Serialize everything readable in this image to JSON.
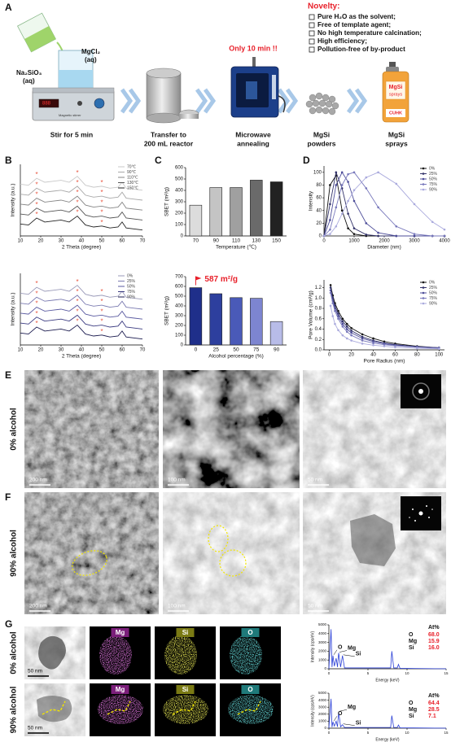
{
  "panel_labels": [
    "A",
    "B",
    "C",
    "D",
    "E",
    "F",
    "G"
  ],
  "scheme": {
    "reagent_1": [
      "Na₂SiO₃",
      "(aq)"
    ],
    "reagent_2": [
      "MgCl₂",
      "(aq)"
    ],
    "stirrer_label": "Magnetic stirrer",
    "steps": [
      [
        "Stir for 5 min"
      ],
      [
        "Transfer to",
        "200 mL reactor"
      ],
      [
        "Microwave",
        "annealing"
      ],
      [
        "MgSi",
        "powders"
      ],
      [
        "MgSi",
        "sprays"
      ]
    ],
    "highlight": "Only 10 min !!",
    "can_labels": [
      "MgSi",
      "sprays",
      "CUHK"
    ],
    "novelty_title": "Novelty:",
    "novelty_items": [
      "Pure H₂O as the solvent;",
      "Free of template agent;",
      "No high temperature calcination;",
      "High efficiency;",
      "Pollution-free of by-product"
    ]
  },
  "chart_data": [
    {
      "type": "line",
      "x_label": "2 Theta (degree)",
      "y_label": "Intensity (a.u.)",
      "x": [
        10,
        14,
        18,
        22,
        26,
        30,
        34,
        38,
        42,
        46,
        50,
        54,
        58,
        60,
        62,
        66,
        70
      ],
      "xlim": [
        10,
        70
      ],
      "xticks": [
        10,
        20,
        30,
        40,
        50,
        60,
        70
      ],
      "ylim": [
        0,
        3.6
      ],
      "legend": "upper right",
      "peak_marks": {
        "label": "*",
        "color": "#e8503a",
        "x": [
          18,
          38,
          50
        ]
      },
      "series": [
        {
          "name": "70℃",
          "color": "#c8c8c8",
          "values": [
            2.6,
            2.55,
            2.9,
            2.7,
            2.75,
            2.8,
            2.7,
            3.0,
            2.55,
            2.45,
            2.5,
            2.4,
            2.45,
            2.7,
            2.4,
            2.35,
            2.3
          ]
        },
        {
          "name": "90℃",
          "color": "#a8a8a8",
          "values": [
            2.1,
            2.05,
            2.4,
            2.2,
            2.25,
            2.3,
            2.2,
            2.5,
            2.05,
            1.95,
            2.0,
            1.9,
            1.95,
            2.2,
            1.9,
            1.85,
            1.8
          ]
        },
        {
          "name": "110℃",
          "color": "#858585",
          "values": [
            1.6,
            1.55,
            1.9,
            1.7,
            1.75,
            1.8,
            1.7,
            2.0,
            1.55,
            1.45,
            1.5,
            1.4,
            1.45,
            1.7,
            1.4,
            1.35,
            1.3
          ]
        },
        {
          "name": "130℃",
          "color": "#555555",
          "values": [
            1.1,
            1.05,
            1.4,
            1.2,
            1.25,
            1.3,
            1.2,
            1.5,
            1.05,
            0.95,
            1.0,
            0.9,
            0.95,
            1.2,
            0.9,
            0.85,
            0.8
          ]
        },
        {
          "name": "150℃",
          "color": "#222222",
          "values": [
            0.6,
            0.55,
            0.9,
            0.7,
            0.75,
            0.8,
            0.7,
            1.0,
            0.55,
            0.45,
            0.5,
            0.4,
            0.45,
            0.7,
            0.4,
            0.35,
            0.3
          ]
        }
      ]
    },
    {
      "type": "line",
      "x_label": "2 Theta (degree)",
      "y_label": "Intensity (a.u.)",
      "x": [
        10,
        14,
        18,
        22,
        26,
        30,
        34,
        38,
        42,
        46,
        50,
        54,
        58,
        60,
        62,
        66,
        70
      ],
      "xlim": [
        10,
        70
      ],
      "xticks": [
        10,
        20,
        30,
        40,
        50,
        60,
        70
      ],
      "ylim": [
        0,
        3.6
      ],
      "legend": "upper right",
      "peak_marks": {
        "label": "*",
        "color": "#e8503a",
        "x": [
          18,
          38,
          50
        ]
      },
      "series": [
        {
          "name": "0%",
          "color": "#9a9ab8",
          "values": [
            2.6,
            2.55,
            2.9,
            2.7,
            2.75,
            2.8,
            2.7,
            3.0,
            2.55,
            2.45,
            2.5,
            2.4,
            2.45,
            2.7,
            2.4,
            2.35,
            2.3
          ]
        },
        {
          "name": "25%",
          "color": "#7a7ab0",
          "values": [
            2.1,
            2.05,
            2.4,
            2.2,
            2.25,
            2.3,
            2.2,
            2.5,
            2.05,
            1.95,
            2.0,
            1.9,
            1.95,
            2.2,
            1.9,
            1.85,
            1.8
          ]
        },
        {
          "name": "50%",
          "color": "#5a5aa0",
          "values": [
            1.6,
            1.55,
            1.9,
            1.7,
            1.75,
            1.8,
            1.7,
            2.0,
            1.55,
            1.45,
            1.5,
            1.4,
            1.45,
            1.7,
            1.4,
            1.35,
            1.3
          ]
        },
        {
          "name": "75%",
          "color": "#3a3a80",
          "values": [
            1.1,
            1.05,
            1.4,
            1.2,
            1.25,
            1.3,
            1.2,
            1.5,
            1.05,
            0.95,
            1.0,
            0.9,
            0.95,
            1.2,
            0.9,
            0.85,
            0.8
          ]
        },
        {
          "name": "90%",
          "color": "#1a1a4e",
          "values": [
            0.6,
            0.55,
            0.9,
            0.7,
            0.75,
            0.8,
            0.7,
            1.0,
            0.55,
            0.45,
            0.5,
            0.4,
            0.45,
            0.7,
            0.4,
            0.35,
            0.3
          ]
        }
      ]
    },
    {
      "type": "bar",
      "x_label": "Temperature (℃)",
      "y_label": "SBET (m²/g)",
      "categories": [
        "70",
        "90",
        "110",
        "130",
        "150"
      ],
      "values": [
        270,
        425,
        425,
        490,
        475
      ],
      "colors": [
        "#dcdcdc",
        "#c4c4c4",
        "#a0a0a0",
        "#6a6a6a",
        "#222222"
      ],
      "ylim": [
        0,
        600
      ],
      "yticks": [
        0,
        100,
        200,
        300,
        400,
        500,
        600
      ]
    },
    {
      "type": "bar",
      "x_label": "Alcohol percentage (%)",
      "y_label": "SBET (m²/g)",
      "categories": [
        "0",
        "25",
        "50",
        "75",
        "90"
      ],
      "values": [
        587,
        525,
        485,
        478,
        240
      ],
      "colors": [
        "#1f2f8a",
        "#2d3f9e",
        "#4a5ab8",
        "#7d85d0",
        "#b8bce8"
      ],
      "ylim": [
        0,
        700
      ],
      "yticks": [
        0,
        100,
        200,
        300,
        400,
        500,
        600,
        700
      ],
      "annotation": "587 m²/g",
      "annotation_color": "#e8202a"
    },
    {
      "type": "line",
      "markers": true,
      "x_label": "Diameter (nm)",
      "y_label": "Intensity",
      "x": [
        0,
        200,
        400,
        600,
        800,
        1000,
        1400,
        1800,
        2400,
        3000,
        3600,
        4000
      ],
      "xlim": [
        0,
        4000
      ],
      "xticks": [
        0,
        1000,
        2000,
        3000,
        4000
      ],
      "ylim": [
        0,
        110
      ],
      "yticks": [
        0,
        20,
        40,
        60,
        80,
        100
      ],
      "legend": "upper right",
      "series": [
        {
          "name": "0%",
          "color": "#111111",
          "values": [
            0,
            80,
            95,
            40,
            12,
            3,
            0,
            0,
            0,
            0,
            0,
            0
          ]
        },
        {
          "name": "25%",
          "color": "#33336a",
          "values": [
            0,
            50,
            100,
            75,
            35,
            12,
            2,
            0,
            0,
            0,
            0,
            0
          ]
        },
        {
          "name": "50%",
          "color": "#4d4d99",
          "values": [
            0,
            25,
            80,
            100,
            85,
            55,
            20,
            5,
            0,
            0,
            0,
            0
          ]
        },
        {
          "name": "75%",
          "color": "#7777bb",
          "values": [
            0,
            10,
            45,
            80,
            97,
            100,
            75,
            45,
            15,
            3,
            0,
            0
          ]
        },
        {
          "name": "90%",
          "color": "#aaaadd",
          "values": [
            0,
            3,
            15,
            35,
            55,
            72,
            92,
            100,
            82,
            50,
            22,
            10
          ]
        }
      ]
    },
    {
      "type": "line",
      "markers": true,
      "x_label": "Pore Radius (nm)",
      "y_label": "Pore Volume (cm³/g)",
      "x": [
        1,
        3,
        5,
        8,
        12,
        16,
        20,
        30,
        40,
        50,
        60,
        80,
        100
      ],
      "xlim": [
        -5,
        105
      ],
      "xticks": [
        0,
        20,
        40,
        60,
        80,
        100
      ],
      "ylim": [
        0,
        1.35
      ],
      "yticks": [
        {
          "value": 0,
          "label": "0.0"
        },
        0.2,
        0.4,
        0.6,
        0.8,
        {
          "value": 1,
          "label": "1.0"
        },
        1.2
      ],
      "legend": "upper right",
      "series": [
        {
          "name": "0%",
          "color": "#111111",
          "values": [
            1.25,
            1.05,
            0.9,
            0.75,
            0.6,
            0.5,
            0.42,
            0.3,
            0.22,
            0.16,
            0.12,
            0.07,
            0.04
          ]
        },
        {
          "name": "25%",
          "color": "#33336a",
          "values": [
            1.2,
            1.0,
            0.85,
            0.7,
            0.55,
            0.45,
            0.37,
            0.25,
            0.18,
            0.13,
            0.1,
            0.06,
            0.04
          ]
        },
        {
          "name": "50%",
          "color": "#4d4d99",
          "values": [
            1.15,
            0.95,
            0.8,
            0.65,
            0.5,
            0.4,
            0.33,
            0.22,
            0.16,
            0.12,
            0.09,
            0.06,
            0.04
          ]
        },
        {
          "name": "75%",
          "color": "#7777bb",
          "values": [
            1.1,
            0.9,
            0.75,
            0.6,
            0.45,
            0.35,
            0.28,
            0.18,
            0.13,
            0.1,
            0.08,
            0.05,
            0.03
          ]
        },
        {
          "name": "90%",
          "color": "#aaaadd",
          "values": [
            0.85,
            0.65,
            0.5,
            0.38,
            0.28,
            0.22,
            0.18,
            0.12,
            0.09,
            0.07,
            0.05,
            0.03,
            0.02
          ]
        }
      ]
    },
    {
      "type": "spectrum",
      "x_label": "Energy (keV)",
      "y_label": "Intensity (cps/eV)",
      "color": "#2a3fd6",
      "x": [
        0,
        0.28,
        0.4,
        0.52,
        0.7,
        0.93,
        1.1,
        1.25,
        1.5,
        1.74,
        2.0,
        7.9,
        8.05,
        8.3,
        8.75,
        8.9,
        9.1,
        15
      ],
      "values": [
        0,
        4500,
        200,
        1500,
        300,
        1200,
        200,
        1800,
        200,
        1500,
        100,
        100,
        2000,
        100,
        100,
        500,
        50,
        0
      ],
      "xlim": [
        0,
        15
      ],
      "xticks": [
        0,
        5,
        10,
        15
      ],
      "ylim": [
        0,
        5000
      ],
      "yticks": [
        0,
        1000,
        2000,
        3000,
        4000,
        5000
      ],
      "peak_labels": [
        {
          "label": "O",
          "x": 0.52
        },
        {
          "label": "Mg",
          "x": 1.25
        },
        {
          "label": "Si",
          "x": 1.74
        }
      ],
      "composition": {
        "header": "At%",
        "rows": [
          [
            "O",
            "68.0"
          ],
          [
            "Mg",
            "15.9"
          ],
          [
            "Si",
            "16.0"
          ]
        ]
      }
    },
    {
      "type": "spectrum",
      "x_label": "Energy (keV)",
      "y_label": "Intensity (cps/eV)",
      "color": "#2a3fd6",
      "x": [
        0,
        0.28,
        0.4,
        0.52,
        0.7,
        0.93,
        1.1,
        1.25,
        1.5,
        1.74,
        2.0,
        7.9,
        8.05,
        8.3,
        8.75,
        8.9,
        9.1,
        15
      ],
      "values": [
        0,
        4200,
        150,
        900,
        300,
        1000,
        200,
        2300,
        200,
        500,
        100,
        100,
        1800,
        100,
        100,
        450,
        50,
        0
      ],
      "xlim": [
        0,
        15
      ],
      "xticks": [
        0,
        5,
        10,
        15
      ],
      "ylim": [
        0,
        5000
      ],
      "yticks": [
        0,
        1000,
        2000,
        3000,
        4000,
        5000
      ],
      "peak_labels": [
        {
          "label": "O",
          "x": 0.52
        },
        {
          "label": "Mg",
          "x": 1.25
        },
        {
          "label": "Si",
          "x": 1.74
        }
      ],
      "composition": {
        "header": "At%",
        "rows": [
          [
            "O",
            "64.4"
          ],
          [
            "Mg",
            "28.5"
          ],
          [
            "Si",
            "7.1"
          ]
        ]
      }
    }
  ],
  "micrographs": {
    "row_labels": [
      "0% alcohol",
      "90% alcohol"
    ],
    "scale_bars": [
      [
        "200 nm",
        "100 nm",
        "50 nm"
      ],
      [
        "200 nm",
        "100 nm",
        "50 nm"
      ]
    ]
  },
  "eds_maps": {
    "scale_bars": [
      "50 nm",
      "50 nm"
    ],
    "elements": [
      "Mg",
      "Si",
      "O"
    ]
  }
}
